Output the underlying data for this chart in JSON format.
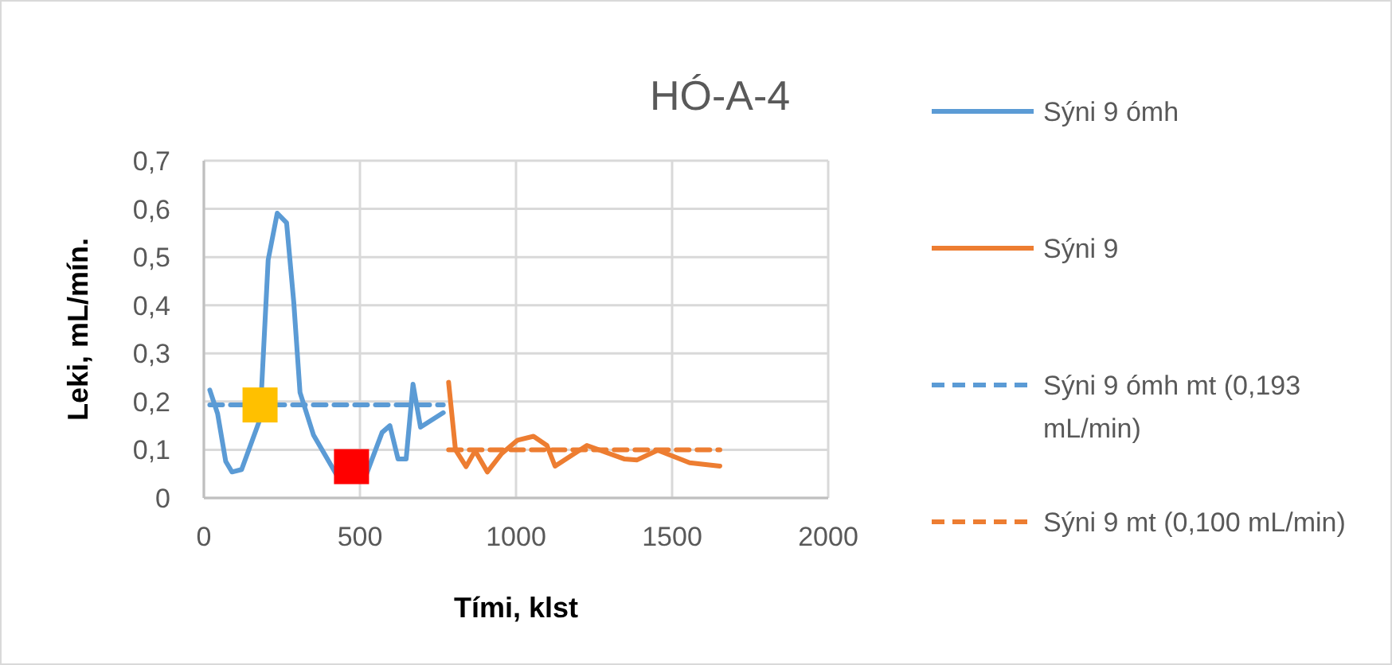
{
  "chart_data": {
    "type": "line",
    "title": "HÓ-A-4",
    "xlabel": "Tími, klst",
    "ylabel": "Leki, mL/mín.",
    "xlim": [
      0,
      2000
    ],
    "xticks": [
      0,
      500,
      1000,
      1500,
      2000
    ],
    "ylim": [
      0,
      0.7
    ],
    "yticks": [
      0,
      {
        "value": 0.1,
        "label": "0,1"
      },
      {
        "value": 0.2,
        "label": "0,2"
      },
      {
        "value": 0.3,
        "label": "0,3"
      },
      {
        "value": 0.4,
        "label": "0,4"
      },
      {
        "value": 0.5,
        "label": "0,5"
      },
      {
        "value": 0.6,
        "label": "0,6"
      },
      {
        "value": 0.7,
        "label": "0,7"
      }
    ],
    "grid": true,
    "legend": "right",
    "series": [
      {
        "name": "Sýni 9 ómh",
        "color": "#5b9bd5",
        "line_style": "solid",
        "x": [
          19,
          44,
          70,
          90,
          121,
          180,
          206,
          235,
          265,
          288,
          308,
          351,
          435,
          520,
          571,
          596,
          622,
          648,
          670,
          694,
          767
        ],
        "values": [
          0.224,
          0.175,
          0.076,
          0.054,
          0.059,
          0.164,
          0.494,
          0.591,
          0.571,
          0.406,
          0.219,
          0.131,
          0.037,
          0.048,
          0.136,
          0.15,
          0.081,
          0.081,
          0.236,
          0.147,
          0.177
        ]
      },
      {
        "name": "Sýni 9",
        "color": "#ed7d31",
        "line_style": "solid",
        "x": [
          784,
          806,
          840,
          869,
          908,
          954,
          1005,
          1056,
          1099,
          1125,
          1227,
          1346,
          1388,
          1454,
          1556,
          1653
        ],
        "values": [
          0.24,
          0.1,
          0.065,
          0.098,
          0.054,
          0.092,
          0.12,
          0.128,
          0.109,
          0.066,
          0.109,
          0.081,
          0.079,
          0.099,
          0.073,
          0.066
        ]
      },
      {
        "name": "Sýni 9 ómh mt (0,193 mL/min)",
        "color": "#5b9bd5",
        "line_style": "dashed",
        "x": [
          19,
          767
        ],
        "values": [
          0.193,
          0.193
        ]
      },
      {
        "name": "Sýni 9 mt (0,100 mL/min)",
        "color": "#ed7d31",
        "line_style": "dashed",
        "x": [
          784,
          1653
        ],
        "values": [
          0.1,
          0.1
        ]
      },
      {
        "type": "scatter",
        "marker": "square",
        "color": "#ffc000",
        "x": [
          180
        ],
        "values": [
          0.193
        ]
      },
      {
        "type": "scatter",
        "marker": "square",
        "color": "#ff0000",
        "x": [
          473
        ],
        "values": [
          0.065
        ]
      }
    ]
  }
}
